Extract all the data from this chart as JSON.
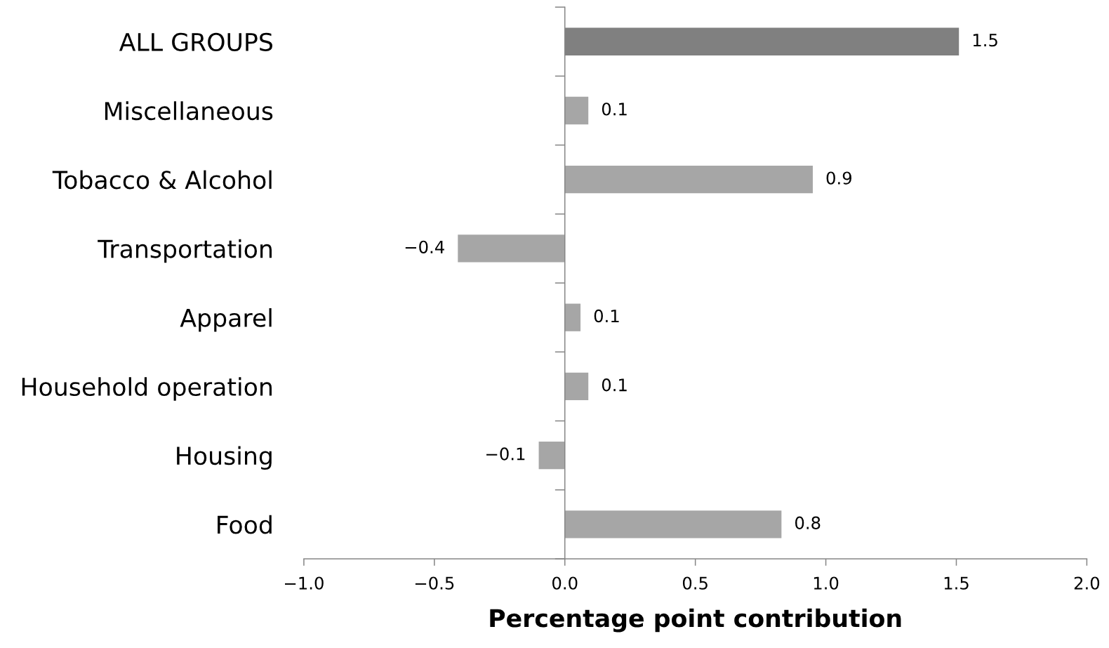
{
  "chart_data": {
    "type": "bar",
    "orientation": "horizontal",
    "categories": [
      "ALL GROUPS",
      "Miscellaneous",
      "Tobacco & Alcohol",
      "Transportation",
      "Apparel",
      "Household operation",
      "Housing",
      "Food"
    ],
    "values": [
      1.51,
      0.09,
      0.95,
      -0.41,
      0.06,
      0.09,
      -0.1,
      0.83
    ],
    "colors": [
      "#808080",
      "#a6a6a6",
      "#a6a6a6",
      "#a6a6a6",
      "#a6a6a6",
      "#a6a6a6",
      "#a6a6a6",
      "#a6a6a6"
    ],
    "value_labels": [
      "1.5",
      "0.1",
      "0.9",
      "−0.4",
      "0.1",
      "0.1",
      "−0.1",
      "0.8"
    ],
    "xlabel": "Percentage point contribution",
    "xlim": [
      -1,
      2
    ],
    "xticks": [
      {
        "value": -1,
        "label": "−1.0"
      },
      {
        "value": -0.5,
        "label": "−0.5"
      },
      {
        "value": 0,
        "label": "0.0"
      },
      {
        "value": 0.5,
        "label": "0.5"
      },
      {
        "value": 1,
        "label": "1.0"
      },
      {
        "value": 1.5,
        "label": "1.5"
      },
      {
        "value": 2,
        "label": "2.0"
      }
    ]
  }
}
